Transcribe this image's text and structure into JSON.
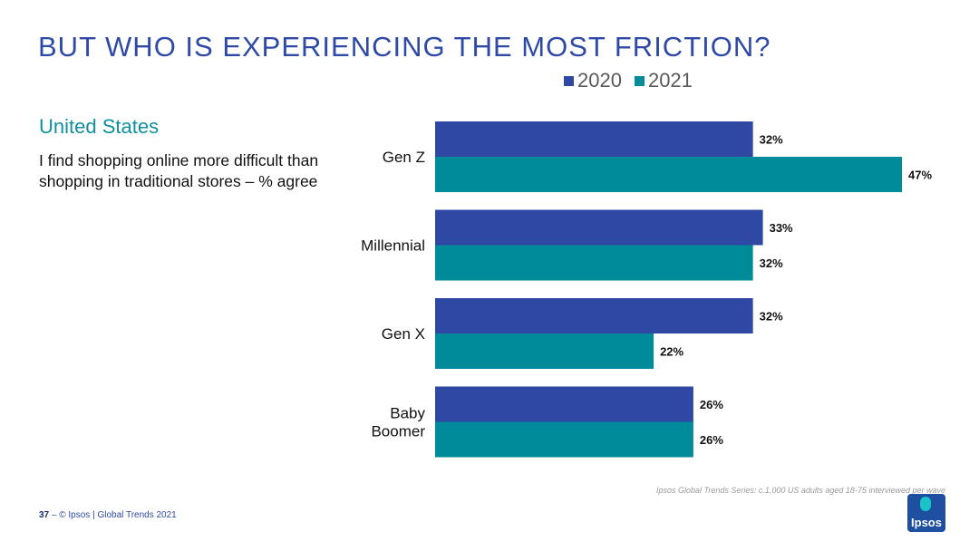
{
  "title": "BUT WHO IS EXPERIENCING THE MOST FRICTION?",
  "subtitle": "United States",
  "question": "I find shopping online more difficult than shopping in traditional stores – % agree",
  "colors": {
    "s2020": "#2e48a3",
    "s2021": "#008b9a",
    "title": "#2e4aa6"
  },
  "chart_data": {
    "type": "bar",
    "orientation": "horizontal",
    "categories": [
      [
        "Gen Z"
      ],
      [
        "Millennial"
      ],
      [
        "Gen X"
      ],
      [
        "Baby",
        "Boomer"
      ]
    ],
    "series": [
      {
        "name": "2020",
        "values": [
          32,
          33,
          32,
          26
        ],
        "labels": [
          "32%",
          "33%",
          "32%",
          "26%"
        ]
      },
      {
        "name": "2021",
        "values": [
          47,
          32,
          22,
          26
        ],
        "labels": [
          "47%",
          "32%",
          "22%",
          "26%"
        ]
      }
    ],
    "xlim": [
      0,
      50
    ],
    "legend_position": "top"
  },
  "footer": {
    "page_number": "37",
    "separator": "–",
    "copyright": "© Ipsos | Global Trends 2021",
    "source": "Ipsos Global Trends Series: c.1,000 US adults aged 18-75 interviewed per wave",
    "logo": "Ipsos"
  }
}
